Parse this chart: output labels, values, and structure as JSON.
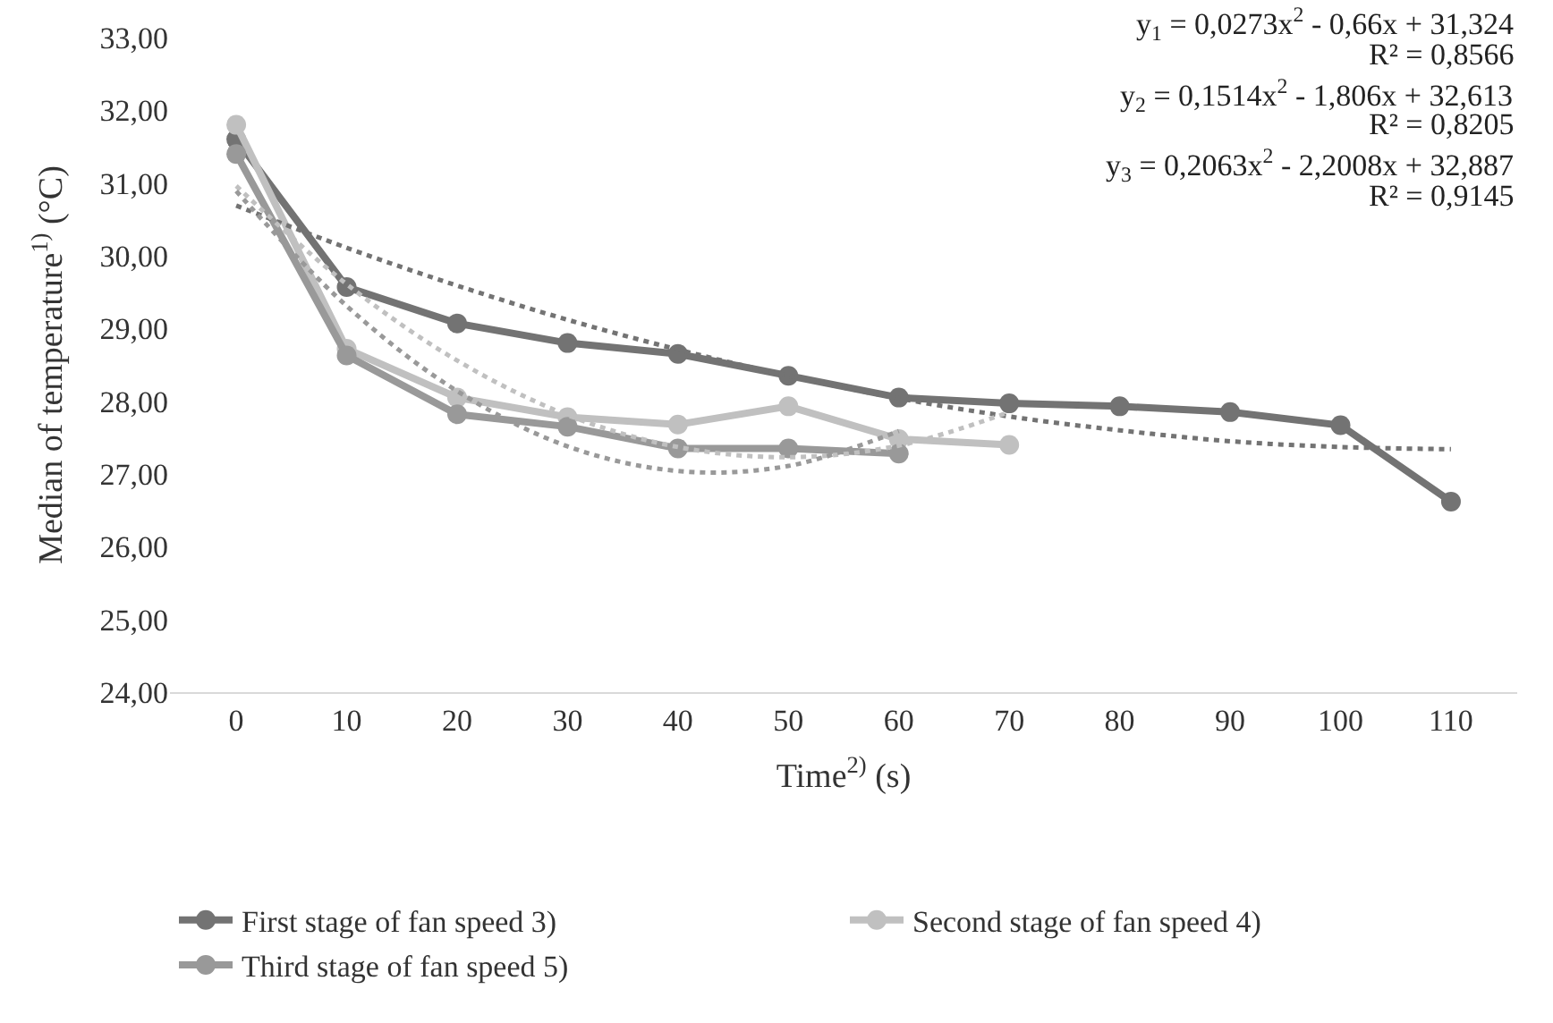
{
  "chart_data": {
    "type": "line",
    "xlabel": "Time$^{2)}$ (s)",
    "ylabel": "Median of temperature$^{1)}$ (°C)",
    "categories": [
      "0",
      "10",
      "20",
      "30",
      "40",
      "50",
      "60",
      "70",
      "80",
      "90",
      "100",
      "110"
    ],
    "ylim": [
      24,
      33
    ],
    "yticks": [
      {
        "value": 24,
        "label": "24,00"
      },
      {
        "value": 25,
        "label": "25,00"
      },
      {
        "value": 26,
        "label": "26,00"
      },
      {
        "value": 27,
        "label": "27,00"
      },
      {
        "value": 28,
        "label": "28,00"
      },
      {
        "value": 29,
        "label": "29,00"
      },
      {
        "value": 30,
        "label": "30,00"
      },
      {
        "value": 31,
        "label": "31,00"
      },
      {
        "value": 32,
        "label": "32,00"
      },
      {
        "value": 33,
        "label": "33,00"
      }
    ],
    "legend": "bottom",
    "marker": "circle",
    "line_style": "solid",
    "series": [
      {
        "name": "First stage of fan speed 3)",
        "color": "#737373",
        "values": [
          31.6,
          29.57,
          29.07,
          28.8,
          28.65,
          28.35,
          28.05,
          27.97,
          27.93,
          27.85,
          27.67,
          26.62
        ]
      },
      {
        "name": "Second stage of fan speed 4)",
        "color": "#c0c0c0",
        "values": [
          31.8,
          28.72,
          28.05,
          27.78,
          27.68,
          27.93,
          27.48,
          27.4,
          null,
          null,
          null,
          null
        ]
      },
      {
        "name": "Third stage of fan speed 5)",
        "color": "#999999",
        "values": [
          31.4,
          28.63,
          27.82,
          27.65,
          27.35,
          27.35,
          27.28,
          null,
          null,
          null,
          null,
          null
        ]
      },
      {
        "color": "#737373",
        "marker": "none",
        "line_style": "dotted",
        "values": [
          30.69,
          30.11,
          29.59,
          29.12,
          28.71,
          28.35,
          28.04,
          27.79,
          27.6,
          27.45,
          27.37,
          27.34
        ]
      },
      {
        "color": "#c0c0c0",
        "marker": "none",
        "line_style": "dotted",
        "values": [
          30.96,
          29.61,
          28.56,
          27.81,
          27.37,
          27.23,
          27.39,
          27.85,
          null,
          null,
          null,
          null
        ]
      },
      {
        "color": "#999999",
        "marker": "none",
        "line_style": "dotted",
        "values": [
          30.89,
          29.31,
          28.14,
          27.38,
          27.04,
          27.11,
          27.59,
          null,
          null,
          null,
          null,
          null
        ]
      }
    ],
    "annotations": [
      "y$_{1}$ = 0,0273x$^{2}$ - 0,66x + 31,324",
      "R² = 0,8566",
      "y$_{2}$ = 0,1514x$^{2}$ - 1,806x + 32,613",
      "R² = 0,8205",
      "y$_{3}$ = 0,2063x$^{2}$ - 2,2008x + 32,887",
      "R² = 0,9145"
    ]
  }
}
